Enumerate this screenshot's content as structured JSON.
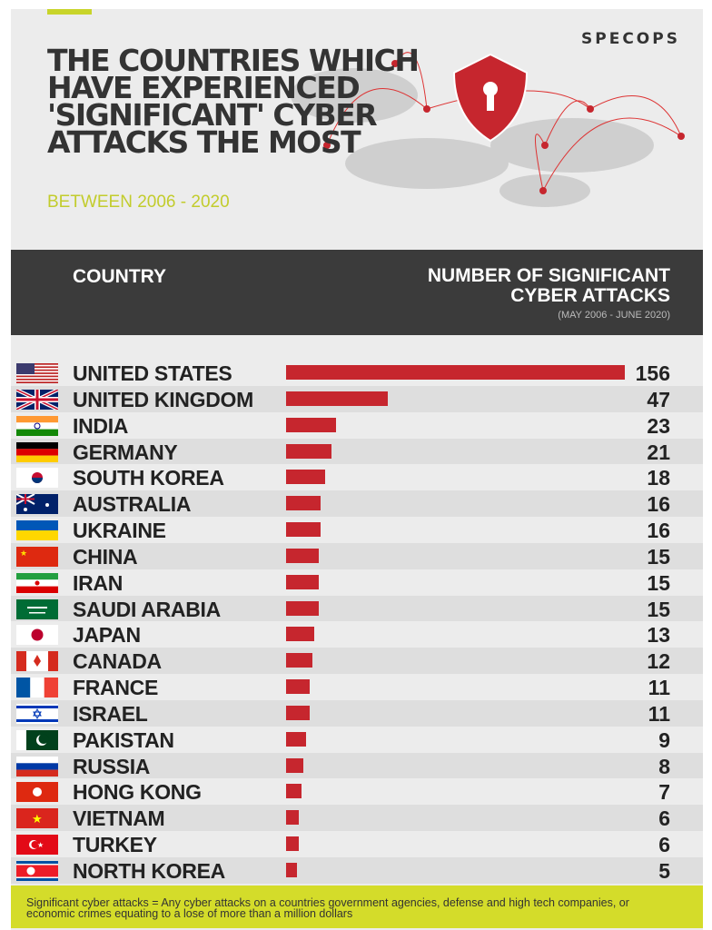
{
  "header": {
    "title": "THE COUNTRIES WHICH HAVE EXPERIENCED 'SIGNIFICANT' CYBER ATTACKS THE MOST",
    "subtitle": "BETWEEN 2006 - 2020",
    "logo": "SPECOPS"
  },
  "table_header": {
    "country": "COUNTRY",
    "number": "NUMBER OF SIGNIFICANT CYBER ATTACKS",
    "range": "(MAY 2006 - JUNE 2020)"
  },
  "colors": {
    "bar": "#c6262e",
    "accent": "#d4dc2a",
    "header_band": "#3b3b3b"
  },
  "chart_data": {
    "type": "bar",
    "orientation": "horizontal",
    "categories": [
      "UNITED STATES",
      "UNITED KINGDOM",
      "INDIA",
      "GERMANY",
      "SOUTH KOREA",
      "AUSTRALIA",
      "UKRAINE",
      "CHINA",
      "IRAN",
      "SAUDI ARABIA",
      "JAPAN",
      "CANADA",
      "FRANCE",
      "ISRAEL",
      "PAKISTAN",
      "RUSSIA",
      "HONG KONG",
      "VIETNAM",
      "TURKEY",
      "NORTH KOREA"
    ],
    "values": [
      156,
      47,
      23,
      21,
      18,
      16,
      16,
      15,
      15,
      15,
      13,
      12,
      11,
      11,
      9,
      8,
      7,
      6,
      6,
      5
    ],
    "xlim": [
      0,
      156
    ],
    "grid": false,
    "data_labels": true
  },
  "footer": {
    "note": "Significant cyber attacks = Any cyber attacks on a countries government agencies, defense and high tech companies, or economic crimes equating to a lose of more than a million dollars"
  }
}
